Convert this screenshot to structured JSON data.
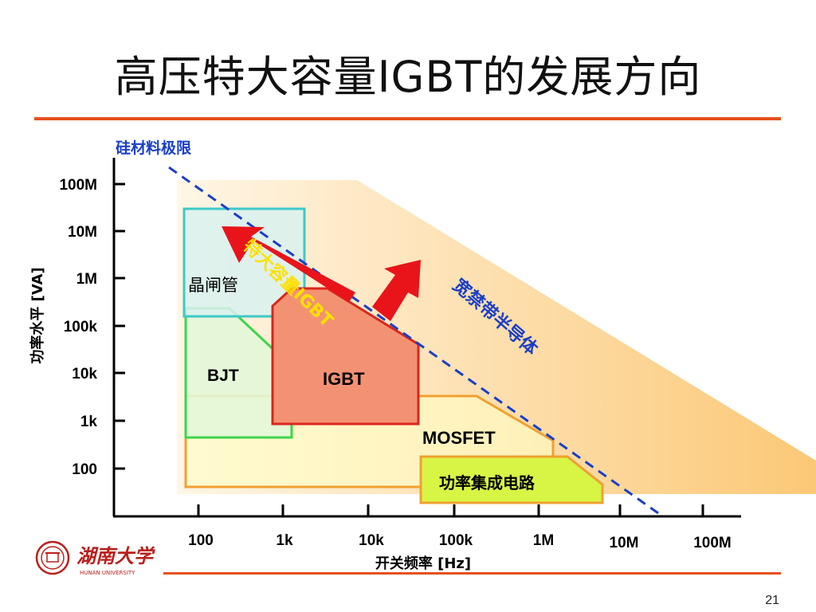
{
  "slide": {
    "title": "高压特大容量IGBT的发展方向",
    "page_number": "21"
  },
  "diagram": {
    "silicon_limit_label": "硅材料极限",
    "y_axis": {
      "label": "功率水平 [VA]",
      "ticks": [
        "100M",
        "10M",
        "1M",
        "100k",
        "10k",
        "1k",
        "100"
      ]
    },
    "x_axis": {
      "label": "开关频率 [Hz]",
      "ticks": [
        "100",
        "1k",
        "10k",
        "100k",
        "1M",
        "10M",
        "100M"
      ]
    },
    "regions": {
      "thyristor": "晶闸管",
      "bjt": "BJT",
      "igbt": "IGBT",
      "mosfet": "MOSFET",
      "power_ic": "功率集成电路",
      "wide_bandgap": "宽禁带半导体"
    },
    "arrow_label": "特大容量IGBT"
  },
  "logo": {
    "name_cn": "湖南大学",
    "name_en": "HUNAN UNIVERSITY"
  },
  "colors": {
    "accent_rule": "#e8501e",
    "axis_label_blue": "#1a3fc8",
    "limit_line": "#1a3fc8",
    "arrow_red": "#e8141a",
    "arrow_text": "#ffe000",
    "igbt_fill": "#f39272",
    "igbt_border": "#d9261c",
    "thyristor_border": "#3ec8c8",
    "bjt_border": "#3cd64a",
    "mosfet_border": "#f0a030",
    "power_ic_fill": "#d8f545",
    "logo_red": "#b8201c"
  }
}
